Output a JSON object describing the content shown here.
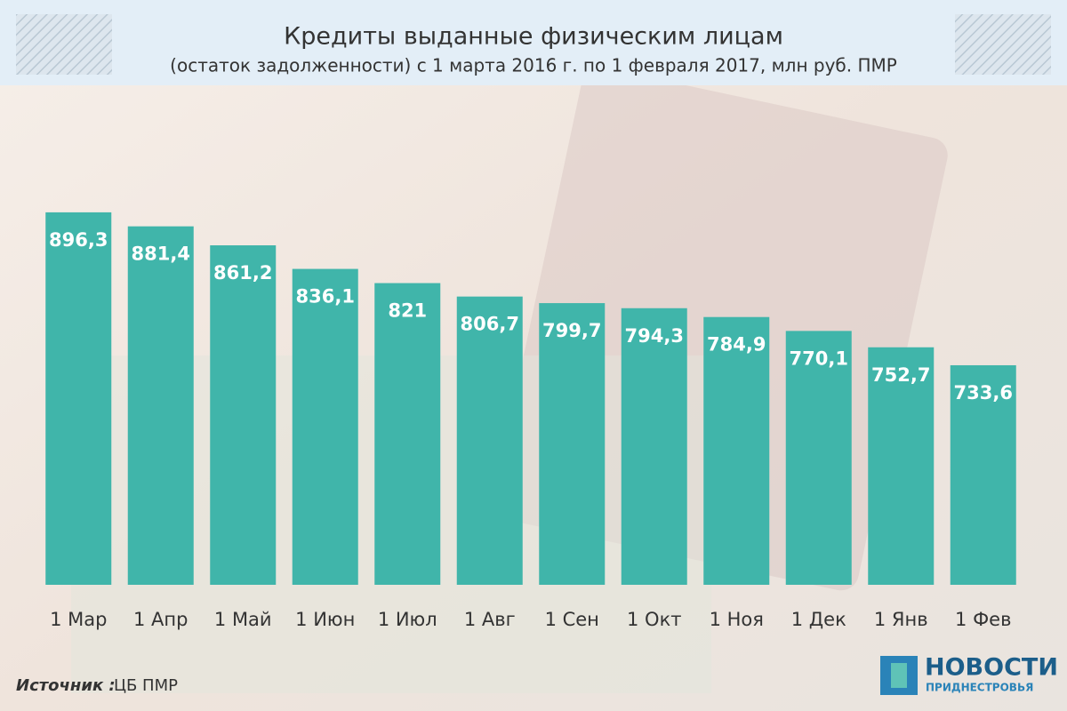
{
  "chart_data": {
    "type": "bar",
    "title": "Кредиты выданные физическим лицам",
    "subtitle": "(остаток задолженности) с 1 марта 2016 г. по 1 февраля 2017, млн руб. ПМР",
    "categories": [
      "1 Мар",
      "1 Апр",
      "1 Май",
      "1 Июн",
      "1 Июл",
      "1 Авг",
      "1 Сен",
      "1 Окт",
      "1 Ноя",
      "1 Дек",
      "1 Янв",
      "1 Фев"
    ],
    "values": [
      896.3,
      881.4,
      861.2,
      836.1,
      821,
      806.7,
      799.7,
      794.3,
      784.9,
      770.1,
      752.7,
      733.6
    ],
    "value_labels": [
      "896,3",
      "881,4",
      "861,2",
      "836,1",
      "821",
      "806,7",
      "799,7",
      "794,3",
      "784,9",
      "770,1",
      "752,7",
      "733,6"
    ],
    "color": "#40b5aa",
    "ylim": [
      500,
      900
    ]
  },
  "source": {
    "label": "Источник :",
    "value": "ЦБ ПМР"
  },
  "logo": {
    "name": "НОВОСТИ",
    "region": "ПРИДНЕСТРОВЬЯ"
  }
}
